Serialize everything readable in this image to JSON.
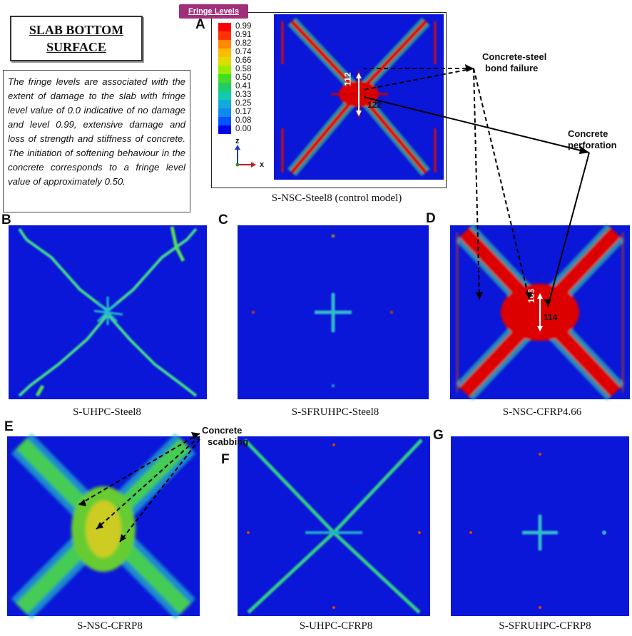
{
  "title": "SLAB BOTTOM SURFACE",
  "title_lines": [
    "SLAB BOTTOM",
    "SURFACE"
  ],
  "description": "The fringe levels are associated with the extent of damage to the slab with fringe level value of 0.0 indicative of no damage and level 0.99, extensive damage and loss of strength and stiffness of concrete. The initiation of softening behaviour in the concrete corresponds to a fringe level value of approximately 0.50.",
  "legend": {
    "tab_label": "Fringe Levels",
    "levels": [
      "0.99",
      "0.91",
      "0.82",
      "0.74",
      "0.66",
      "0.58",
      "0.50",
      "0.41",
      "0.33",
      "0.25",
      "0.17",
      "0.08",
      "0.00"
    ],
    "colors": [
      "#ff0000",
      "#ff3300",
      "#ff8800",
      "#ffbb00",
      "#dddd00",
      "#99ee00",
      "#44dd22",
      "#22cc66",
      "#11ccaa",
      "#11aadd",
      "#1188ee",
      "#0055ff",
      "#0000ee"
    ],
    "axis_z": "z",
    "axis_x": "x"
  },
  "panels": [
    {
      "letter": "A",
      "caption": "S-NSC-Steel8 (control model)"
    },
    {
      "letter": "B",
      "caption": "S-UHPC-Steel8"
    },
    {
      "letter": "C",
      "caption": "S-SFRUHPC-Steel8"
    },
    {
      "letter": "D",
      "caption": "S-NSC-CFRP4.66"
    },
    {
      "letter": "E",
      "caption": "S-NSC-CFRP8"
    },
    {
      "letter": "F",
      "caption": "S-UHPC-CFRP8"
    },
    {
      "letter": "G",
      "caption": "S-SFRUHPC-CFRP8"
    }
  ],
  "dimensions": {
    "a_vertical": "112",
    "a_horizontal": "122",
    "d_vertical": "106",
    "d_horizontal": "114"
  },
  "annotations": {
    "bond_failure": [
      "Concrete-steel",
      "bond failure"
    ],
    "perforation": [
      "Concrete",
      "perforation"
    ],
    "scabbing": [
      "Concrete",
      "scabbing"
    ]
  },
  "colors": {
    "slab_blue": "#0a16d8",
    "damage_red": "#dd0000",
    "damage_green": "#33cc66",
    "damage_yellow": "#dddd22",
    "tab_purple": "#a0307a"
  }
}
